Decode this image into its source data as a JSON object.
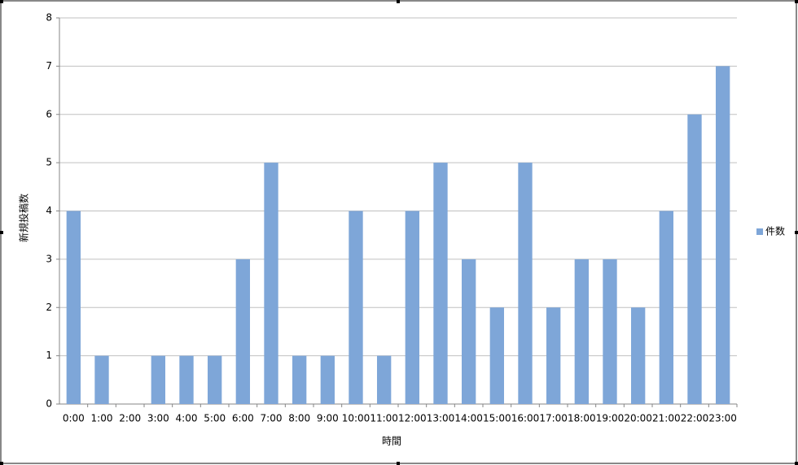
{
  "chart_data": {
    "type": "bar",
    "x_label": "時間",
    "y_label": "新規投稿数",
    "categories": [
      "0:00",
      "1:00",
      "2:00",
      "3:00",
      "4:00",
      "5:00",
      "6:00",
      "7:00",
      "8:00",
      "9:00",
      "10:00",
      "11:00",
      "12:00",
      "13:00",
      "14:00",
      "15:00",
      "16:00",
      "17:00",
      "18:00",
      "19:00",
      "20:00",
      "21:00",
      "22:00",
      "23:00"
    ],
    "series": [
      {
        "name": "件数",
        "color": "#7ea6d8",
        "values": [
          4,
          1,
          0,
          1,
          1,
          1,
          3,
          5,
          1,
          1,
          4,
          1,
          4,
          5,
          3,
          2,
          5,
          2,
          3,
          3,
          2,
          4,
          6,
          7
        ]
      }
    ],
    "ylim": [
      0,
      8
    ],
    "yticks": [
      0,
      1,
      2,
      3,
      4,
      5,
      6,
      7,
      8
    ],
    "grid": true,
    "legend": "right"
  }
}
